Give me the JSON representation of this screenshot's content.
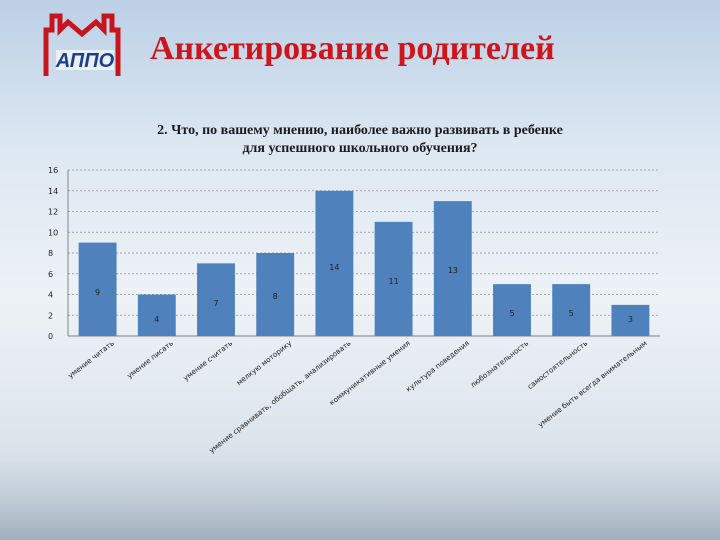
{
  "header": {
    "title": "Анкетирование родителей",
    "logo_text": "АППО"
  },
  "chart_data": {
    "type": "bar",
    "title_lines": [
      "2. Что, по вашему мнению, наиболее важно развивать в ребенке",
      "для успешного школьного обучения?"
    ],
    "categories": [
      "умение читать",
      "умение писать",
      "умение считать",
      "мелкую моторику",
      "умение сравнивать, обобщать, анализировать",
      "коммуникативные умения",
      "культура поведения",
      "любознательность",
      "самостоятельность",
      "умение быть всегда внимательным"
    ],
    "values": [
      9,
      4,
      7,
      8,
      14,
      11,
      13,
      5,
      5,
      3
    ],
    "ylim": [
      0,
      16
    ],
    "yticks": [
      0,
      2,
      4,
      6,
      8,
      10,
      12,
      14,
      16
    ],
    "grid": true,
    "legend": "none",
    "colors": {
      "bar": "#4f81bd",
      "grid": "#8e8e8e",
      "axis": "#6f6f6f"
    }
  }
}
